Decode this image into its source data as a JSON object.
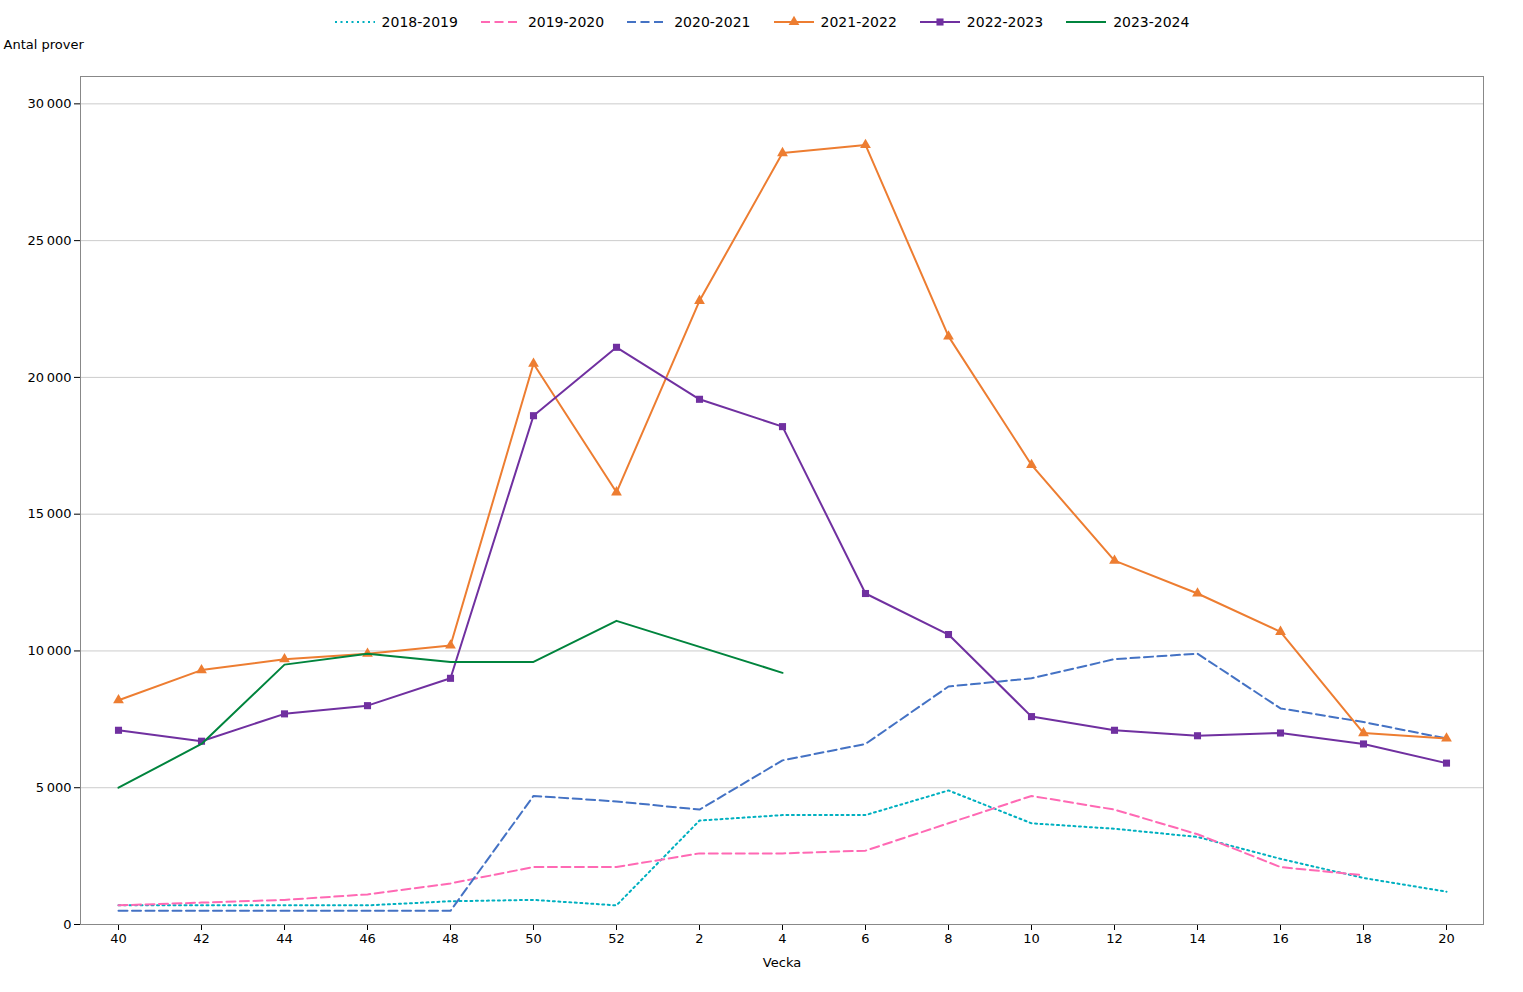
{
  "chart_data": {
    "type": "line",
    "xlabel": "Vecka",
    "ylabel": "Antal prover",
    "categories": [
      40,
      42,
      44,
      46,
      48,
      50,
      52,
      2,
      4,
      6,
      8,
      10,
      12,
      14,
      16,
      18,
      20
    ],
    "ylim": [
      0,
      31000
    ],
    "yticks": [
      0,
      {
        "value": 5000,
        "label": "5 000"
      },
      {
        "value": 10000,
        "label": "10 000"
      },
      {
        "value": 15000,
        "label": "15 000"
      },
      {
        "value": 20000,
        "label": "20 000"
      },
      {
        "value": 25000,
        "label": "25 000"
      },
      {
        "value": 30000,
        "label": "30 000"
      }
    ],
    "grid": true,
    "legend": "top",
    "series": [
      {
        "name": "2018-2019",
        "color": "#00B0C0",
        "line_style": "dotted",
        "values": [
          700,
          700,
          700,
          700,
          850,
          900,
          700,
          3800,
          4000,
          4000,
          4900,
          3700,
          3500,
          3200,
          2400,
          1700,
          1200
        ]
      },
      {
        "name": "2019-2020",
        "color": "#FF69B4",
        "line_style": "dashed",
        "values": [
          700,
          800,
          900,
          1100,
          1500,
          2100,
          2100,
          2600,
          2600,
          2700,
          3700,
          4700,
          4200,
          3300,
          2100,
          1800,
          null
        ]
      },
      {
        "name": "2020-2021",
        "color": "#4472C4",
        "line_style": "dashed",
        "values": [
          500,
          500,
          500,
          500,
          500,
          4700,
          4500,
          4200,
          6000,
          6600,
          8700,
          9000,
          9700,
          9900,
          7900,
          7400,
          6800
        ]
      },
      {
        "name": "2021-2022",
        "color": "#ED7D31",
        "line_style": "solid",
        "marker": "triangle",
        "values": [
          8200,
          9300,
          9700,
          9900,
          10200,
          20500,
          15800,
          22800,
          28200,
          28500,
          21500,
          16800,
          13300,
          12100,
          10700,
          7000,
          6800
        ]
      },
      {
        "name": "2022-2023",
        "color": "#7030A0",
        "line_style": "solid",
        "marker": "square",
        "values": [
          7100,
          6700,
          7700,
          8000,
          9000,
          18600,
          21100,
          19200,
          18200,
          12100,
          10600,
          7600,
          7100,
          6900,
          7000,
          6600,
          5900
        ]
      },
      {
        "name": "2023-2024",
        "color": "#00843D",
        "line_style": "solid",
        "values": [
          5000,
          6600,
          9500,
          9900,
          9600,
          9600,
          11100,
          null,
          9200,
          null,
          null,
          null,
          null,
          null,
          null,
          null,
          null
        ]
      }
    ]
  }
}
